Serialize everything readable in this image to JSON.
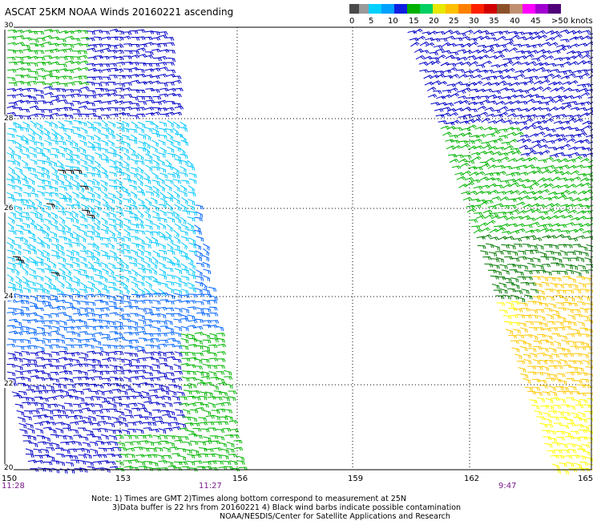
{
  "title": "ASCAT 25KM NOAA Winds 20160221 ascending",
  "legend": {
    "colors": [
      "#5a5a5a",
      "#a8a8a8",
      "#00c8ff",
      "#0064ff",
      "#0000c8",
      "#00b400",
      "#007800",
      "#ffff00",
      "#ffc800",
      "#ff7800",
      "#ff0000",
      "#c80000",
      "#8c5028",
      "#c8a078",
      "#ff00ff",
      "#9600c8",
      "#500078"
    ],
    "tick_labels": [
      "0",
      "5",
      "10",
      "15",
      "20",
      "25",
      "30",
      "35",
      "40",
      "45",
      ">50 knots"
    ]
  },
  "axes": {
    "lat_labels": [
      "30",
      "28",
      "26",
      "24",
      "22",
      "20"
    ],
    "lon_labels": [
      "150",
      "153",
      "156",
      "159",
      "162",
      "165"
    ],
    "time_labels": [
      "11:28",
      "11:27",
      "9:47"
    ]
  },
  "note": {
    "line1": "Note: 1) Times are GMT 2)Times along bottom correspond to measurement at 25N",
    "line2": "3)Data buffer is 22 hrs from 20160221 4) Black wind barbs indicate possible contamination",
    "line3": "NOAA/NESDIS/Center for Satellite Applications and Research"
  },
  "swaths": [
    {
      "name": "west-swath",
      "wind_colors": [
        "#00c8ff",
        "#0064ff",
        "#0000c8",
        "#00b400",
        "#007800",
        "#000000"
      ]
    },
    {
      "name": "east-swath",
      "wind_colors": [
        "#0000c8",
        "#00b400",
        "#007800",
        "#ffff00",
        "#ffc800"
      ]
    }
  ]
}
